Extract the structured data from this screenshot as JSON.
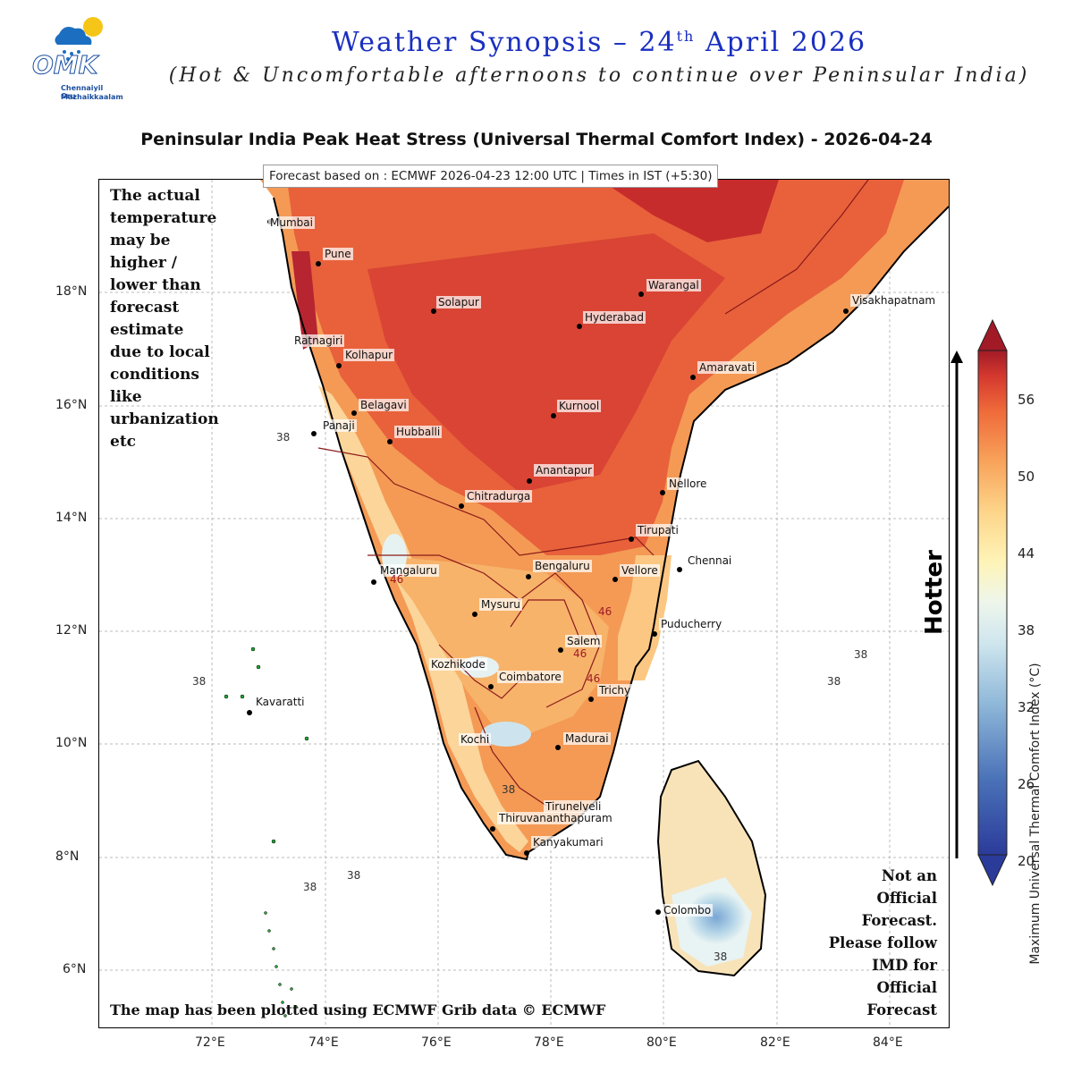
{
  "header": {
    "logo_text": "OMK",
    "logo_tagline_1": "Chennaiyil Oru",
    "logo_tagline_2": "Mazhaikkaalam",
    "title_main": "Weather Synopsis – 24",
    "title_sup": "th",
    "title_end": " April 2026",
    "subtitle": "(Hot & Uncomfortable afternoons to continue over Peninsular India)"
  },
  "map": {
    "title": "Peninsular India Peak Heat Stress (Universal Thermal Comfort Index) - 2026-04-24",
    "forecast_info": "Forecast based on : ECMWF 2026-04-23 12:00 UTC | Times in IST (+5:30)",
    "lat_ticks": [
      "18°N",
      "16°N",
      "14°N",
      "12°N",
      "10°N",
      "8°N",
      "6°N"
    ],
    "lon_ticks": [
      "72°E",
      "74°E",
      "76°E",
      "78°E",
      "80°E",
      "82°E",
      "84°E"
    ],
    "cities": [
      "Mumbai",
      "Pune",
      "Solapur",
      "Warangal",
      "Hyderabad",
      "Visakhapatnam",
      "Ratnagiri",
      "Kolhapur",
      "Amaravati",
      "Belagavi",
      "Kurnool",
      "Panaji",
      "Hubballi",
      "Anantapur",
      "Nellore",
      "Chitradurga",
      "Tirupati",
      "Mangaluru",
      "Bengaluru",
      "Chennai",
      "Vellore",
      "Mysuru",
      "Puducherry",
      "Salem",
      "Kozhikode",
      "Coimbatore",
      "Trichy",
      "Kavaratti",
      "Kochi",
      "Madurai",
      "Tirunelveli",
      "Thiruvananthapuram",
      "Kanyakumari",
      "Colombo"
    ],
    "contour_labels": [
      "38",
      "38",
      "38",
      "38",
      "38",
      "38",
      "38",
      "38",
      "46",
      "46",
      "46",
      "46"
    ],
    "note_left": "The actual temperature may be higher / lower than forecast estimate due to local conditions like urbanization etc",
    "note_bottom": "The map has been plotted using ECMWF Grib data © ECMWF",
    "note_right": "Not an Official Forecast. Please follow IMD for Official Forecast",
    "arrow_label": "Hotter"
  },
  "colorbar": {
    "label": "Maximum Universal Thermal Comfort Index (°C)",
    "ticks": [
      "56",
      "50",
      "44",
      "38",
      "32",
      "26",
      "20"
    ],
    "range": [
      20,
      59
    ],
    "colors": {
      "cold": "#2b3b9a",
      "mild": "#e8f3f3",
      "warm": "#fdd58a",
      "hot": "#ef6a3a",
      "extreme": "#a11a26"
    }
  }
}
